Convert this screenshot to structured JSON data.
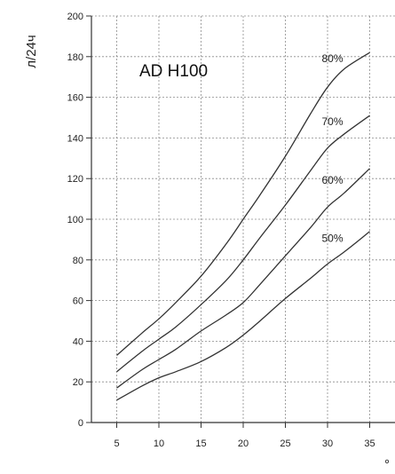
{
  "chart_data": {
    "type": "line",
    "title": "AD H100",
    "ylabel": "л/24ч",
    "xlabel": "°",
    "xlim": [
      2,
      38
    ],
    "ylim": [
      0,
      200
    ],
    "xticks": [
      5,
      10,
      15,
      20,
      25,
      30,
      35
    ],
    "yticks": [
      0,
      20,
      40,
      60,
      80,
      100,
      120,
      140,
      160,
      180,
      200
    ],
    "grid": true,
    "series": [
      {
        "name": "80%",
        "x": [
          5,
          8,
          10,
          12,
          15,
          18,
          20,
          22,
          25,
          28,
          30,
          32,
          35
        ],
        "y": [
          33,
          44,
          51,
          59,
          72,
          88,
          100,
          112,
          131,
          152,
          165,
          174,
          182
        ]
      },
      {
        "name": "70%",
        "x": [
          5,
          8,
          10,
          12,
          15,
          18,
          20,
          22,
          25,
          28,
          30,
          32,
          35
        ],
        "y": [
          25,
          35,
          41,
          47,
          58,
          70,
          80,
          91,
          107,
          124,
          135,
          142,
          151
        ]
      },
      {
        "name": "60%",
        "x": [
          5,
          8,
          10,
          12,
          15,
          18,
          20,
          22,
          25,
          28,
          30,
          32,
          35
        ],
        "y": [
          17,
          26,
          31,
          36,
          45,
          53,
          59,
          68,
          82,
          96,
          106,
          113,
          125
        ]
      },
      {
        "name": "50%",
        "x": [
          5,
          8,
          10,
          12,
          15,
          18,
          20,
          22,
          25,
          28,
          30,
          32,
          35
        ],
        "y": [
          11,
          18,
          22,
          25,
          30,
          37,
          43,
          50,
          61,
          71,
          78,
          84,
          94
        ]
      }
    ]
  }
}
